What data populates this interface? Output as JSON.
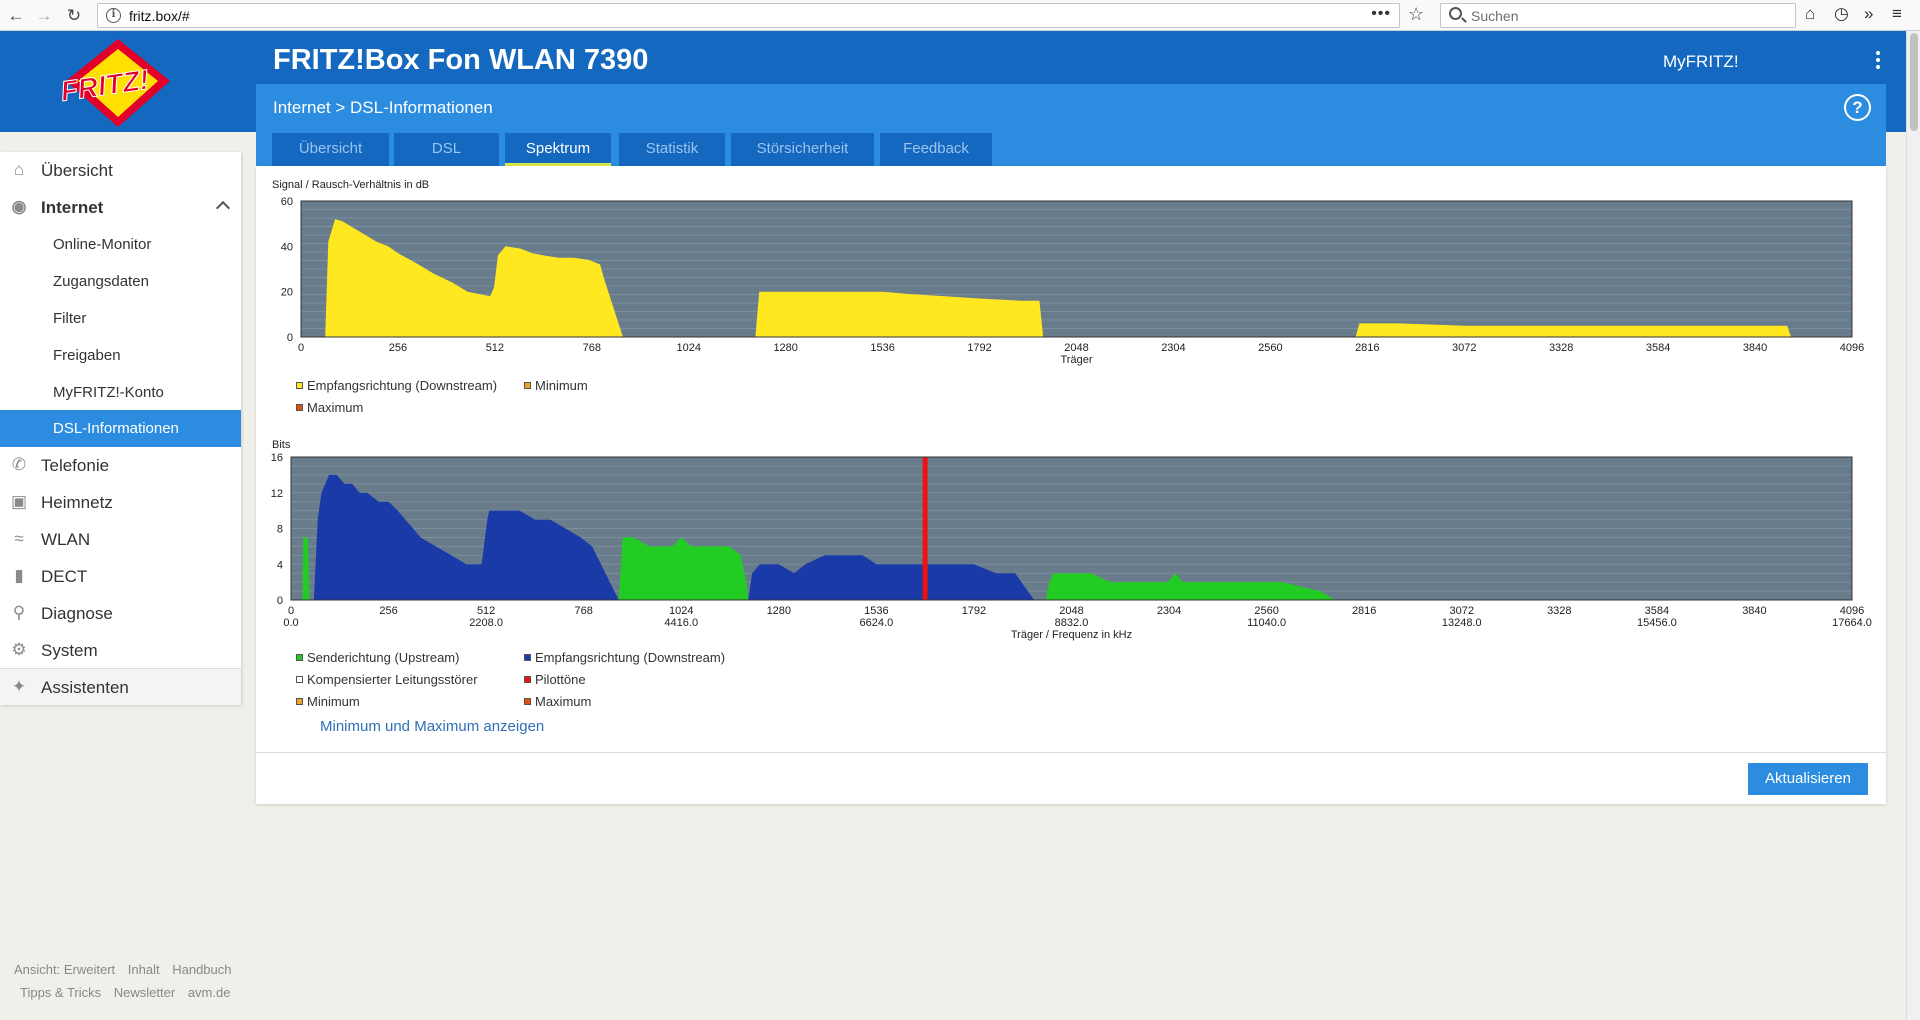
{
  "browser": {
    "url": "fritz.box/#",
    "search_placeholder": "Suchen"
  },
  "header": {
    "logo_text": "FRITZ!",
    "title": "FRITZ!Box Fon WLAN 7390",
    "myfritz_label": "MyFRITZ!",
    "breadcrumb": "Internet > DSL-Informationen",
    "help": "?"
  },
  "tabs": [
    {
      "label": "Übersicht"
    },
    {
      "label": "DSL"
    },
    {
      "label": "Spektrum"
    },
    {
      "label": "Statistik"
    },
    {
      "label": "Störsicherheit"
    },
    {
      "label": "Feedback"
    }
  ],
  "active_tab": "Spektrum",
  "sidebar": {
    "items": [
      {
        "label": "Übersicht",
        "icon": "home-icon"
      },
      {
        "label": "Internet",
        "icon": "globe-icon"
      },
      {
        "label": "Telefonie",
        "icon": "phone-icon"
      },
      {
        "label": "Heimnetz",
        "icon": "network-icon"
      },
      {
        "label": "WLAN",
        "icon": "wifi-icon"
      },
      {
        "label": "DECT",
        "icon": "dect-icon"
      },
      {
        "label": "Diagnose",
        "icon": "diagnose-icon"
      },
      {
        "label": "System",
        "icon": "gear-icon"
      },
      {
        "label": "Assistenten",
        "icon": "wizard-icon"
      }
    ],
    "internet_sub": [
      {
        "label": "Online-Monitor"
      },
      {
        "label": "Zugangsdaten"
      },
      {
        "label": "Filter"
      },
      {
        "label": "Freigaben"
      },
      {
        "label": "MyFRITZ!-Konto"
      },
      {
        "label": "DSL-Informationen"
      }
    ],
    "active_sub": "DSL-Informationen"
  },
  "footer": {
    "row1": [
      "Ansicht: Erweitert",
      "Inhalt",
      "Handbuch"
    ],
    "row2": [
      "Tipps & Tricks",
      "Newsletter",
      "avm.de"
    ]
  },
  "colors": {
    "header_blue": "#1468c0",
    "accent_blue": "#2b8ce0",
    "plot_bg": "#687c8c",
    "snr_yellow": "#ffe820",
    "upstream_green": "#22cc22",
    "downstream_blue": "#1a3aa8",
    "pilot_red": "#ee1111"
  },
  "chart_data": [
    {
      "type": "area",
      "ylabel": "Signal / Rausch-Verhältnis in dB",
      "xlabel": "Träger",
      "ylim": [
        0,
        60
      ],
      "yticks": [
        0,
        20,
        40,
        60
      ],
      "xlim": [
        0,
        4096
      ],
      "xticks": [
        0,
        256,
        512,
        768,
        1024,
        1280,
        1536,
        1792,
        2048,
        2304,
        2560,
        2816,
        3072,
        3328,
        3584,
        3840,
        4096
      ],
      "legend": [
        "Empfangsrichtung (Downstream)",
        "Minimum",
        "Maximum"
      ],
      "series": [
        {
          "name": "Empfangsrichtung (Downstream)",
          "color": "#ffe820",
          "segments": [
            [
              [
                64,
                0
              ],
              [
                72,
                42
              ],
              [
                90,
                52
              ],
              [
                110,
                51
              ],
              [
                140,
                48
              ],
              [
                170,
                45
              ],
              [
                200,
                42
              ],
              [
                230,
                40
              ],
              [
                256,
                37
              ],
              [
                300,
                33
              ],
              [
                350,
                28
              ],
              [
                400,
                24
              ],
              [
                440,
                20
              ],
              [
                500,
                18
              ],
              [
                510,
                22
              ],
              [
                520,
                36
              ],
              [
                540,
                40
              ],
              [
                580,
                39
              ],
              [
                610,
                37
              ],
              [
                640,
                36
              ],
              [
                680,
                35
              ],
              [
                720,
                35
              ],
              [
                760,
                34
              ],
              [
                790,
                32
              ],
              [
                800,
                26
              ],
              [
                850,
                0
              ]
            ],
            [
              [
                1200,
                0
              ],
              [
                1210,
                20
              ],
              [
                1280,
                20
              ],
              [
                1400,
                20
              ],
              [
                1536,
                20
              ],
              [
                1600,
                19
              ],
              [
                1700,
                18
              ],
              [
                1792,
                17
              ],
              [
                1900,
                16
              ],
              [
                1950,
                16
              ],
              [
                1960,
                0
              ]
            ],
            [
              [
                2785,
                0
              ],
              [
                2795,
                6
              ],
              [
                2900,
                6
              ],
              [
                3072,
                5
              ],
              [
                3328,
                5
              ],
              [
                3584,
                5
              ],
              [
                3800,
                5
              ],
              [
                3925,
                5
              ],
              [
                3935,
                0
              ]
            ]
          ]
        }
      ]
    },
    {
      "type": "area",
      "ylabel": "Bits",
      "xlabel": "Träger / Frequenz in kHz",
      "ylim": [
        0,
        16
      ],
      "yticks": [
        0,
        4,
        8,
        12,
        16
      ],
      "xlim": [
        0,
        4096
      ],
      "xticks": [
        0,
        256,
        512,
        768,
        1024,
        1280,
        1536,
        1792,
        2048,
        2304,
        2560,
        2816,
        3072,
        3328,
        3584,
        3840,
        4096
      ],
      "freq_ticks": [
        {
          "x": 0,
          "label": "0.0"
        },
        {
          "x": 512,
          "label": "2208.0"
        },
        {
          "x": 1024,
          "label": "4416.0"
        },
        {
          "x": 1536,
          "label": "6624.0"
        },
        {
          "x": 2048,
          "label": "8832.0"
        },
        {
          "x": 2560,
          "label": "11040.0"
        },
        {
          "x": 3072,
          "label": "13248.0"
        },
        {
          "x": 3584,
          "label": "15456.0"
        },
        {
          "x": 4096,
          "label": "17664.0"
        }
      ],
      "legend": [
        "Senderichtung (Upstream)",
        "Empfangsrichtung (Downstream)",
        "Kompensierter Leitungsstörer",
        "Pilottöne",
        "Minimum",
        "Maximum"
      ],
      "pilot_tone_x": 1664,
      "series": [
        {
          "name": "Senderichtung (Upstream)",
          "color": "#22cc22",
          "segments": [
            [
              [
                30,
                0
              ],
              [
                32,
                7
              ],
              [
                45,
                7
              ],
              [
                48,
                0
              ]
            ],
            [
              [
                860,
                0
              ],
              [
                870,
                7
              ],
              [
                900,
                7
              ],
              [
                940,
                6
              ],
              [
                1000,
                6
              ],
              [
                1024,
                7
              ],
              [
                1050,
                6
              ],
              [
                1100,
                6
              ],
              [
                1150,
                6
              ],
              [
                1180,
                5
              ],
              [
                1195,
                2
              ],
              [
                1200,
                0
              ]
            ],
            [
              [
                1980,
                0
              ],
              [
                1990,
                2
              ],
              [
                2000,
                3
              ],
              [
                2100,
                3
              ],
              [
                2150,
                2
              ],
              [
                2300,
                2
              ],
              [
                2320,
                3
              ],
              [
                2340,
                2
              ],
              [
                2500,
                2
              ],
              [
                2600,
                2
              ],
              [
                2700,
                1
              ],
              [
                2740,
                0
              ]
            ]
          ]
        },
        {
          "name": "Empfangsrichtung (Downstream)",
          "color": "#1a3aa8",
          "segments": [
            [
              [
                60,
                0
              ],
              [
                70,
                9
              ],
              [
                80,
                12
              ],
              [
                100,
                14
              ],
              [
                120,
                14
              ],
              [
                140,
                13
              ],
              [
                160,
                13
              ],
              [
                180,
                12
              ],
              [
                200,
                12
              ],
              [
                230,
                11
              ],
              [
                256,
                11
              ],
              [
                280,
                10
              ],
              [
                300,
                9
              ],
              [
                320,
                8
              ],
              [
                340,
                7
              ],
              [
                380,
                6
              ],
              [
                420,
                5
              ],
              [
                460,
                4
              ],
              [
                500,
                4
              ],
              [
                515,
                9
              ],
              [
                520,
                10
              ],
              [
                600,
                10
              ],
              [
                640,
                9
              ],
              [
                680,
                9
              ],
              [
                720,
                8
              ],
              [
                760,
                7
              ],
              [
                790,
                6
              ],
              [
                860,
                0
              ]
            ],
            [
              [
                1200,
                0
              ],
              [
                1210,
                3
              ],
              [
                1230,
                4
              ],
              [
                1280,
                4
              ],
              [
                1320,
                3
              ],
              [
                1350,
                4
              ],
              [
                1400,
                5
              ],
              [
                1500,
                5
              ],
              [
                1536,
                4
              ],
              [
                1600,
                4
              ],
              [
                1700,
                4
              ],
              [
                1792,
                4
              ],
              [
                1850,
                3
              ],
              [
                1900,
                3
              ],
              [
                1950,
                0
              ]
            ]
          ]
        }
      ]
    }
  ],
  "minmax_link": "Minimum und Maximum anzeigen",
  "refresh_button": "Aktualisieren"
}
